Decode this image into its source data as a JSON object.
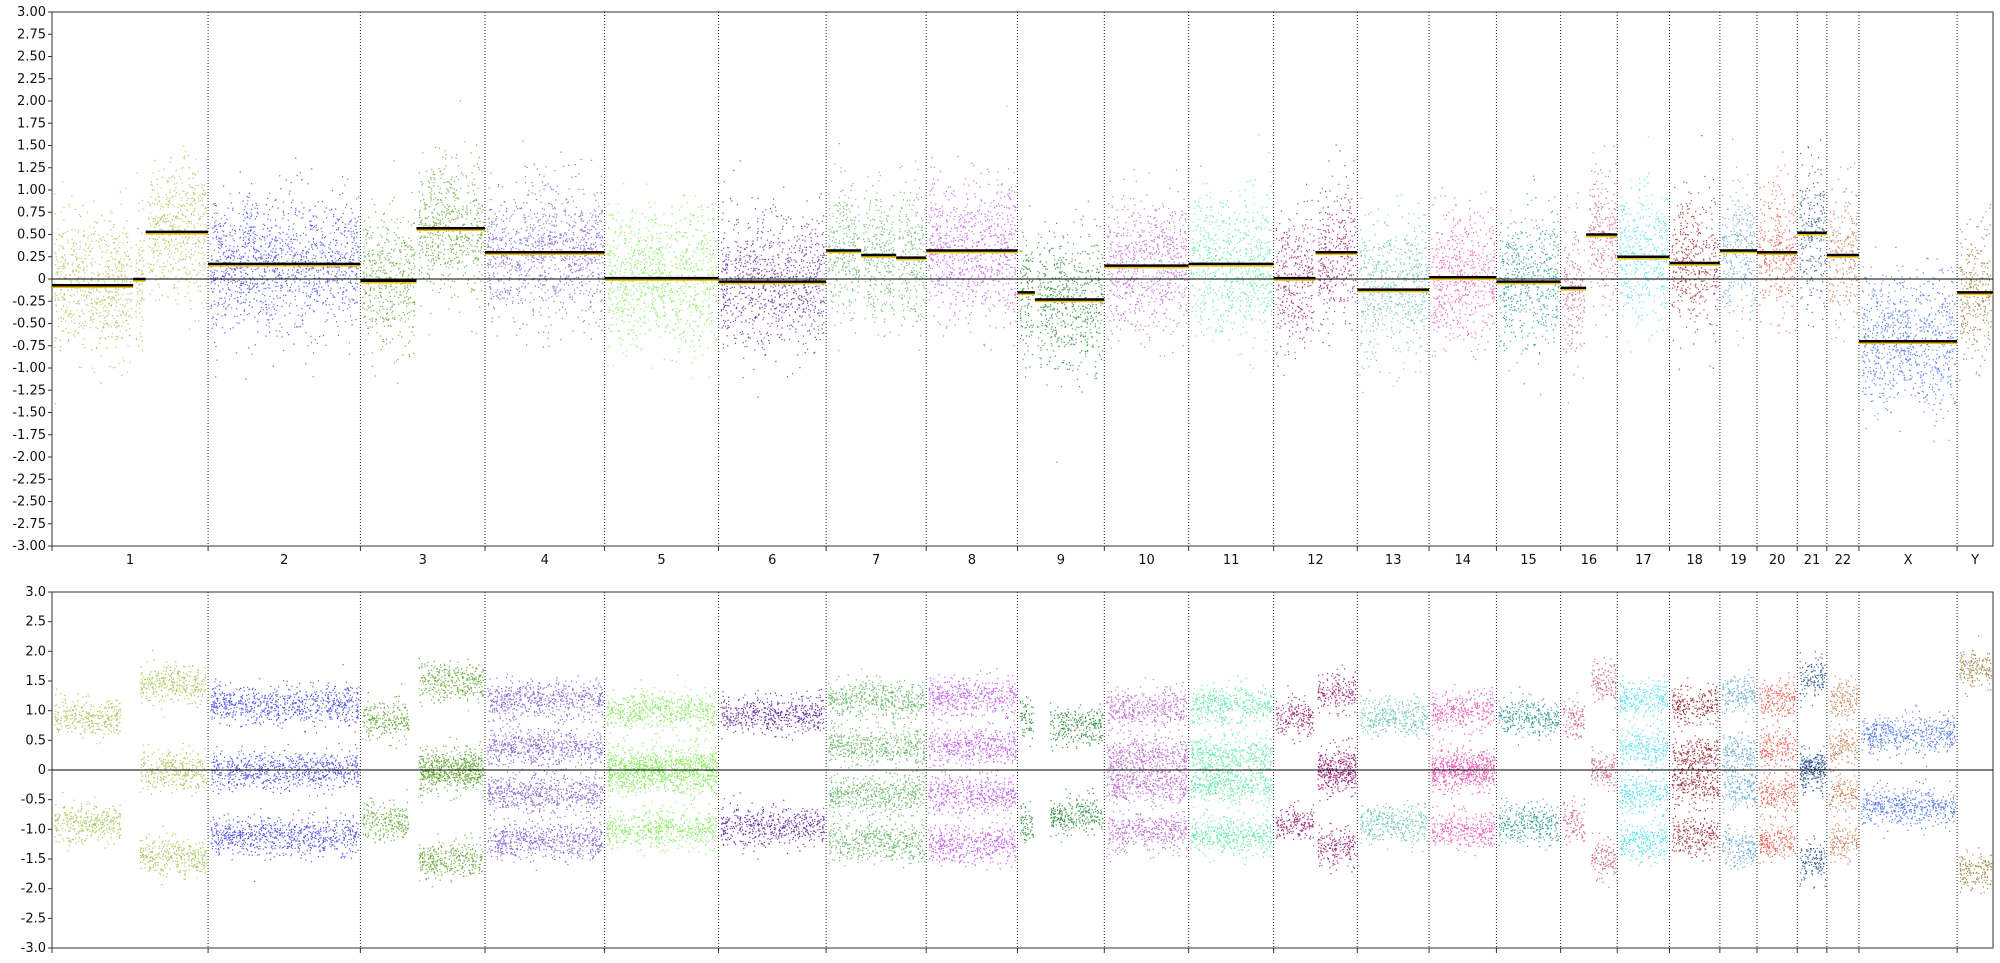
{
  "chart_data": [
    {
      "type": "scatter",
      "panel": "log2-ratio",
      "title": "",
      "xlabel": "",
      "ylabel": "",
      "ylim": [
        -3.0,
        3.0
      ],
      "y_ticks": [
        "3.00",
        "2.75",
        "2.50",
        "2.25",
        "2.00",
        "1.75",
        "1.50",
        "1.25",
        "1.00",
        "0.75",
        "0.50",
        "0.25",
        "0",
        "-0.25",
        "-0.50",
        "-0.75",
        "-1.00",
        "-1.25",
        "-1.50",
        "-1.75",
        "-2.00",
        "-2.25",
        "-2.50",
        "-2.75",
        "-3.00"
      ],
      "x_categories": [
        "1",
        "2",
        "3",
        "4",
        "5",
        "6",
        "7",
        "8",
        "9",
        "10",
        "11",
        "12",
        "13",
        "14",
        "15",
        "16",
        "17",
        "18",
        "19",
        "20",
        "21",
        "22",
        "X",
        "Y"
      ],
      "grid": false,
      "segment_mean_color": "#000000",
      "smoothed_line_color": "#f0c000",
      "series": [
        {
          "name": "1",
          "color": "#9dbb3a",
          "segments": [
            [
              0.0,
              0.52,
              -0.07
            ],
            [
              0.52,
              0.6,
              0.0
            ],
            [
              0.6,
              1.0,
              0.53
            ]
          ]
        },
        {
          "name": "2",
          "color": "#2e2ee0",
          "segments": [
            [
              0.0,
              1.0,
              0.17
            ]
          ]
        },
        {
          "name": "3",
          "color": "#4a9a10",
          "segments": [
            [
              0.0,
              0.45,
              -0.02
            ],
            [
              0.45,
              1.0,
              0.57
            ]
          ]
        },
        {
          "name": "4",
          "color": "#6a48c8",
          "segments": [
            [
              0.0,
              1.0,
              0.3
            ]
          ]
        },
        {
          "name": "5",
          "color": "#6ee83c",
          "segments": [
            [
              0.0,
              1.0,
              0.01
            ]
          ]
        },
        {
          "name": "6",
          "color": "#4a0a8c",
          "segments": [
            [
              0.0,
              1.0,
              -0.03
            ]
          ]
        },
        {
          "name": "7",
          "color": "#4aaa4a",
          "segments": [
            [
              0.0,
              0.35,
              0.32
            ],
            [
              0.35,
              0.7,
              0.27
            ],
            [
              0.7,
              1.0,
              0.24
            ]
          ]
        },
        {
          "name": "8",
          "color": "#b63ce8",
          "segments": [
            [
              0.0,
              1.0,
              0.32
            ]
          ]
        },
        {
          "name": "9",
          "color": "#0a7a1a",
          "segments": [
            [
              0.0,
              0.2,
              -0.15
            ],
            [
              0.2,
              1.0,
              -0.23
            ]
          ]
        },
        {
          "name": "10",
          "color": "#b04cc8",
          "segments": [
            [
              0.0,
              1.0,
              0.15
            ]
          ]
        },
        {
          "name": "11",
          "color": "#3ee69a",
          "segments": [
            [
              0.0,
              1.0,
              0.17
            ]
          ]
        },
        {
          "name": "12",
          "color": "#8c0060",
          "segments": [
            [
              0.0,
              0.5,
              0.01
            ],
            [
              0.5,
              1.0,
              0.3
            ]
          ]
        },
        {
          "name": "13",
          "color": "#4cbca0",
          "segments": [
            [
              0.0,
              1.0,
              -0.12
            ]
          ]
        },
        {
          "name": "14",
          "color": "#e83ca8",
          "segments": [
            [
              0.0,
              1.0,
              0.02
            ]
          ]
        },
        {
          "name": "15",
          "color": "#0a8a80",
          "segments": [
            [
              0.0,
              1.0,
              -0.03
            ]
          ]
        },
        {
          "name": "16",
          "color": "#c44a72",
          "segments": [
            [
              0.0,
              0.45,
              -0.1
            ],
            [
              0.45,
              1.0,
              0.5
            ]
          ]
        },
        {
          "name": "17",
          "color": "#30dce8",
          "segments": [
            [
              0.0,
              1.0,
              0.25
            ]
          ]
        },
        {
          "name": "18",
          "color": "#8c0a1a",
          "segments": [
            [
              0.0,
              1.0,
              0.18
            ]
          ]
        },
        {
          "name": "19",
          "color": "#4a9ac8",
          "segments": [
            [
              0.0,
              1.0,
              0.32
            ]
          ]
        },
        {
          "name": "20",
          "color": "#e83c2c",
          "segments": [
            [
              0.0,
              1.0,
              0.3
            ]
          ]
        },
        {
          "name": "21",
          "color": "#0a3a7a",
          "segments": [
            [
              0.0,
              1.0,
              0.52
            ]
          ]
        },
        {
          "name": "22",
          "color": "#c06a3a",
          "segments": [
            [
              0.0,
              1.0,
              0.27
            ]
          ]
        },
        {
          "name": "X",
          "color": "#2e5ee0",
          "segments": [
            [
              0.0,
              1.0,
              -0.7
            ]
          ]
        },
        {
          "name": "Y",
          "color": "#8a6a1a",
          "segments": [
            [
              0.0,
              1.0,
              -0.15
            ]
          ]
        }
      ]
    },
    {
      "type": "scatter",
      "panel": "b-allele",
      "title": "",
      "xlabel": "",
      "ylabel": "",
      "ylim": [
        -3.0,
        3.0
      ],
      "y_ticks": [
        "3.0",
        "2.5",
        "2.0",
        "1.5",
        "1.0",
        "0.5",
        "0",
        "-0.5",
        "-1.0",
        "-1.5",
        "-2.0",
        "-2.5",
        "-3.0"
      ],
      "grid": false,
      "series": [
        {
          "name": "1",
          "bands": [
            [
              0.0,
              0.45,
              0.9
            ],
            [
              0.55,
              1.0,
              1.45
            ],
            [
              0.55,
              1.0,
              0.0
            ]
          ]
        },
        {
          "name": "2",
          "bands": [
            [
              0.0,
              1.0,
              1.1
            ],
            [
              0.0,
              1.0,
              0.0
            ]
          ]
        },
        {
          "name": "3",
          "bands": [
            [
              0.0,
              0.4,
              0.85
            ],
            [
              0.45,
              1.0,
              1.5
            ],
            [
              0.45,
              1.0,
              0.05
            ]
          ]
        },
        {
          "name": "4",
          "bands": [
            [
              0.0,
              1.0,
              1.2
            ],
            [
              0.0,
              1.0,
              0.4
            ]
          ]
        },
        {
          "name": "5",
          "bands": [
            [
              0.0,
              1.0,
              1.0
            ],
            [
              0.0,
              1.0,
              0.1
            ]
          ]
        },
        {
          "name": "6",
          "bands": [
            [
              0.0,
              1.0,
              0.95
            ]
          ]
        },
        {
          "name": "7",
          "bands": [
            [
              0.0,
              1.0,
              1.2
            ],
            [
              0.0,
              1.0,
              0.4
            ]
          ]
        },
        {
          "name": "8",
          "bands": [
            [
              0.0,
              1.0,
              1.25
            ],
            [
              0.0,
              1.0,
              0.4
            ]
          ]
        },
        {
          "name": "9",
          "bands": [
            [
              0.0,
              0.2,
              0.9
            ],
            [
              0.35,
              1.0,
              0.75
            ]
          ]
        },
        {
          "name": "10",
          "bands": [
            [
              0.0,
              1.0,
              1.05
            ],
            [
              0.0,
              1.0,
              0.25
            ]
          ]
        },
        {
          "name": "11",
          "bands": [
            [
              0.0,
              1.0,
              1.1
            ],
            [
              0.0,
              1.0,
              0.25
            ]
          ]
        },
        {
          "name": "12",
          "bands": [
            [
              0.0,
              0.5,
              0.9
            ],
            [
              0.5,
              1.0,
              1.3
            ],
            [
              0.5,
              1.0,
              0.1
            ]
          ]
        },
        {
          "name": "13",
          "bands": [
            [
              0.0,
              1.0,
              0.9
            ]
          ]
        },
        {
          "name": "14",
          "bands": [
            [
              0.0,
              1.0,
              1.0
            ],
            [
              0.0,
              1.0,
              0.05
            ]
          ]
        },
        {
          "name": "15",
          "bands": [
            [
              0.0,
              1.0,
              0.9
            ]
          ]
        },
        {
          "name": "16",
          "bands": [
            [
              0.0,
              0.45,
              0.85
            ],
            [
              0.5,
              1.0,
              1.5
            ],
            [
              0.5,
              1.0,
              0.0
            ]
          ]
        },
        {
          "name": "17",
          "bands": [
            [
              0.0,
              1.0,
              1.2
            ],
            [
              0.0,
              1.0,
              0.4
            ]
          ]
        },
        {
          "name": "18",
          "bands": [
            [
              0.0,
              1.0,
              1.1
            ],
            [
              0.0,
              1.0,
              0.25
            ]
          ]
        },
        {
          "name": "19",
          "bands": [
            [
              0.0,
              1.0,
              1.3
            ],
            [
              0.0,
              1.0,
              0.3
            ]
          ]
        },
        {
          "name": "20",
          "bands": [
            [
              0.0,
              1.0,
              1.2
            ],
            [
              0.0,
              1.0,
              0.4
            ]
          ]
        },
        {
          "name": "21",
          "bands": [
            [
              0.0,
              1.0,
              1.55
            ],
            [
              0.0,
              1.0,
              0.05
            ]
          ]
        },
        {
          "name": "22",
          "bands": [
            [
              0.0,
              1.0,
              1.2
            ],
            [
              0.0,
              1.0,
              0.4
            ]
          ]
        },
        {
          "name": "X",
          "bands": [
            [
              0.0,
              1.0,
              0.6
            ]
          ]
        },
        {
          "name": "Y",
          "bands": [
            [
              0.0,
              1.0,
              1.7
            ]
          ]
        }
      ]
    }
  ],
  "chromosome_widths": [
    248,
    242,
    198,
    190,
    181,
    171,
    159,
    145,
    138,
    134,
    135,
    133,
    114,
    107,
    102,
    90,
    83,
    80,
    59,
    64,
    47,
    51,
    156,
    57
  ]
}
